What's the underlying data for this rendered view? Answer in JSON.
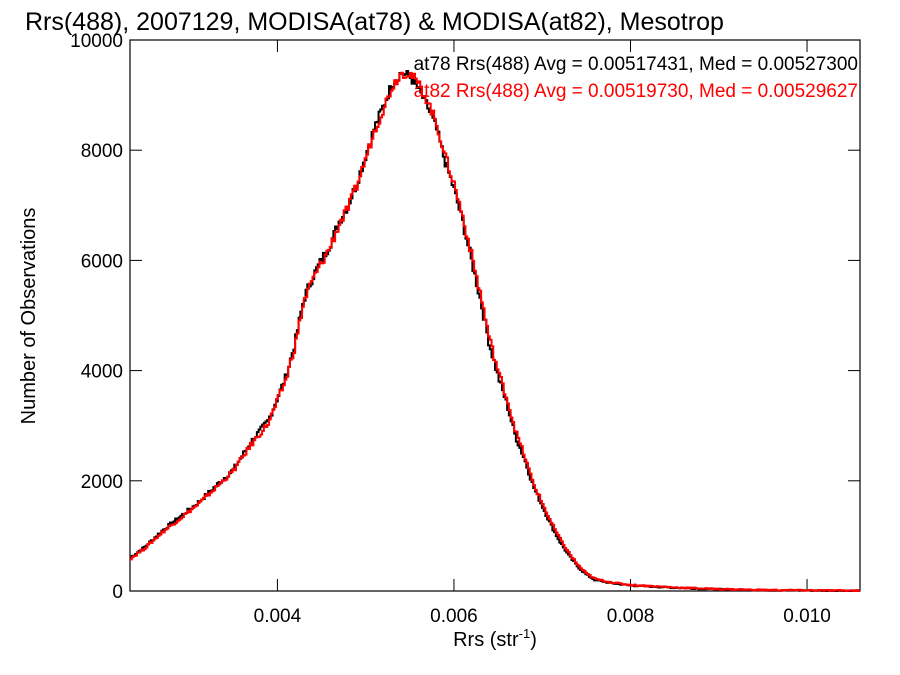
{
  "chart_data": {
    "type": "line",
    "step": true,
    "title": "Rrs(488), 2007129, MODISA(at78) & MODISA(at82), Mesotrop",
    "xlabel": "Rrs (str",
    "xlabel_sup": "-1",
    "xlabel_close": ")",
    "ylabel": "Number of Observations",
    "xlim": [
      0.00233,
      0.0106
    ],
    "ylim": [
      0,
      10000
    ],
    "xticks": [
      0.004,
      0.006,
      0.008,
      0.01
    ],
    "xtick_labels": [
      "0.004",
      "0.006",
      "0.008",
      "0.010"
    ],
    "yticks": [
      0,
      2000,
      4000,
      6000,
      8000,
      10000
    ],
    "ytick_labels": [
      "0",
      "2000",
      "4000",
      "6000",
      "8000",
      "10000"
    ],
    "legend_placement": "top-right",
    "series": [
      {
        "name": "at78",
        "color": "#000000",
        "stats": "at78 Rrs(488) Avg = 0.00517431, Med = 0.00527300",
        "points": [
          [
            0.00233,
            600
          ],
          [
            0.0025,
            800
          ],
          [
            0.0027,
            1100
          ],
          [
            0.0029,
            1350
          ],
          [
            0.0031,
            1600
          ],
          [
            0.0033,
            1900
          ],
          [
            0.0035,
            2200
          ],
          [
            0.0037,
            2700
          ],
          [
            0.0039,
            3100
          ],
          [
            0.0041,
            3900
          ],
          [
            0.0042,
            4500
          ],
          [
            0.0043,
            5300
          ],
          [
            0.0044,
            5700
          ],
          [
            0.0045,
            6000
          ],
          [
            0.0046,
            6300
          ],
          [
            0.0047,
            6700
          ],
          [
            0.0048,
            7000
          ],
          [
            0.0049,
            7400
          ],
          [
            0.005,
            7900
          ],
          [
            0.0051,
            8400
          ],
          [
            0.0052,
            8800
          ],
          [
            0.0053,
            9200
          ],
          [
            0.0054,
            9400
          ],
          [
            0.0055,
            9350
          ],
          [
            0.0056,
            9100
          ],
          [
            0.0057,
            8800
          ],
          [
            0.0058,
            8400
          ],
          [
            0.0059,
            7800
          ],
          [
            0.006,
            7300
          ],
          [
            0.0061,
            6700
          ],
          [
            0.0062,
            6000
          ],
          [
            0.0063,
            5300
          ],
          [
            0.0064,
            4500
          ],
          [
            0.0065,
            3900
          ],
          [
            0.0066,
            3400
          ],
          [
            0.0067,
            2800
          ],
          [
            0.0068,
            2400
          ],
          [
            0.0069,
            1900
          ],
          [
            0.007,
            1550
          ],
          [
            0.0071,
            1200
          ],
          [
            0.0072,
            900
          ],
          [
            0.0073,
            650
          ],
          [
            0.0074,
            450
          ],
          [
            0.0075,
            300
          ],
          [
            0.0076,
            200
          ],
          [
            0.0078,
            140
          ],
          [
            0.008,
            100
          ],
          [
            0.0085,
            60
          ],
          [
            0.009,
            30
          ],
          [
            0.0095,
            15
          ],
          [
            0.0106,
            5
          ]
        ]
      },
      {
        "name": "at82",
        "color": "#ff0000",
        "stats": "at82 Rrs(488) Avg = 0.00519730, Med = 0.00529627",
        "points": [
          [
            0.00233,
            580
          ],
          [
            0.0025,
            780
          ],
          [
            0.0027,
            1070
          ],
          [
            0.0029,
            1320
          ],
          [
            0.0031,
            1570
          ],
          [
            0.0033,
            1870
          ],
          [
            0.0035,
            2180
          ],
          [
            0.0037,
            2650
          ],
          [
            0.0039,
            3050
          ],
          [
            0.0041,
            3850
          ],
          [
            0.0042,
            4450
          ],
          [
            0.0043,
            5250
          ],
          [
            0.0044,
            5650
          ],
          [
            0.0045,
            5950
          ],
          [
            0.0046,
            6250
          ],
          [
            0.0047,
            6650
          ],
          [
            0.0048,
            6950
          ],
          [
            0.0049,
            7350
          ],
          [
            0.005,
            7850
          ],
          [
            0.0051,
            8350
          ],
          [
            0.0052,
            8750
          ],
          [
            0.0053,
            9150
          ],
          [
            0.0054,
            9400
          ],
          [
            0.0055,
            9400
          ],
          [
            0.0056,
            9200
          ],
          [
            0.0057,
            8900
          ],
          [
            0.0058,
            8500
          ],
          [
            0.0059,
            7900
          ],
          [
            0.006,
            7400
          ],
          [
            0.0061,
            6800
          ],
          [
            0.0062,
            6100
          ],
          [
            0.0063,
            5400
          ],
          [
            0.0064,
            4600
          ],
          [
            0.0065,
            4000
          ],
          [
            0.0066,
            3500
          ],
          [
            0.0067,
            2900
          ],
          [
            0.0068,
            2450
          ],
          [
            0.0069,
            1950
          ],
          [
            0.007,
            1600
          ],
          [
            0.0071,
            1250
          ],
          [
            0.0072,
            950
          ],
          [
            0.0073,
            700
          ],
          [
            0.0074,
            480
          ],
          [
            0.0075,
            320
          ],
          [
            0.0076,
            220
          ],
          [
            0.0078,
            150
          ],
          [
            0.008,
            110
          ],
          [
            0.0085,
            65
          ],
          [
            0.009,
            35
          ],
          [
            0.0095,
            18
          ],
          [
            0.0106,
            6
          ]
        ]
      }
    ]
  }
}
